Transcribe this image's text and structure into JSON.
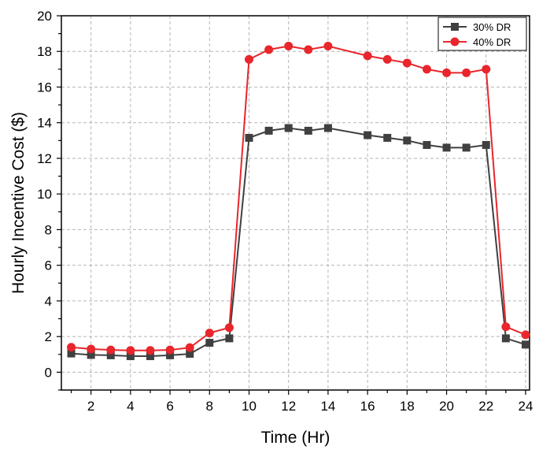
{
  "chart_data": {
    "type": "line",
    "title": "",
    "xlabel": "Time (Hr)",
    "ylabel": "Hourly Incentive Cost ($)",
    "xlim": [
      0.5,
      24.2
    ],
    "ylim": [
      -1,
      20
    ],
    "x_ticks": [
      2,
      4,
      6,
      8,
      10,
      12,
      14,
      16,
      18,
      20,
      22,
      24
    ],
    "y_ticks": [
      0,
      2,
      4,
      6,
      8,
      10,
      12,
      14,
      16,
      18,
      20
    ],
    "grid": true,
    "legend_position": "top-right",
    "x": [
      1,
      2,
      3,
      4,
      5,
      6,
      7,
      8,
      9,
      10,
      11,
      12,
      13,
      14,
      16,
      17,
      18,
      19,
      20,
      21,
      22,
      23,
      24
    ],
    "series": [
      {
        "name": "30% DR",
        "color": "#404040",
        "marker": "square",
        "values": [
          1.05,
          0.97,
          0.95,
          0.9,
          0.9,
          0.95,
          1.03,
          1.65,
          1.9,
          13.15,
          13.55,
          13.7,
          13.55,
          13.7,
          13.3,
          13.15,
          13.0,
          12.75,
          12.6,
          12.6,
          12.75,
          1.9,
          1.55
        ]
      },
      {
        "name": "40% DR",
        "color": "#e8262b",
        "marker": "circle",
        "values": [
          1.4,
          1.3,
          1.25,
          1.22,
          1.22,
          1.25,
          1.38,
          2.2,
          2.5,
          17.55,
          18.1,
          18.3,
          18.1,
          18.3,
          17.75,
          17.55,
          17.35,
          17.0,
          16.8,
          16.8,
          17.0,
          2.55,
          2.1
        ]
      }
    ]
  }
}
